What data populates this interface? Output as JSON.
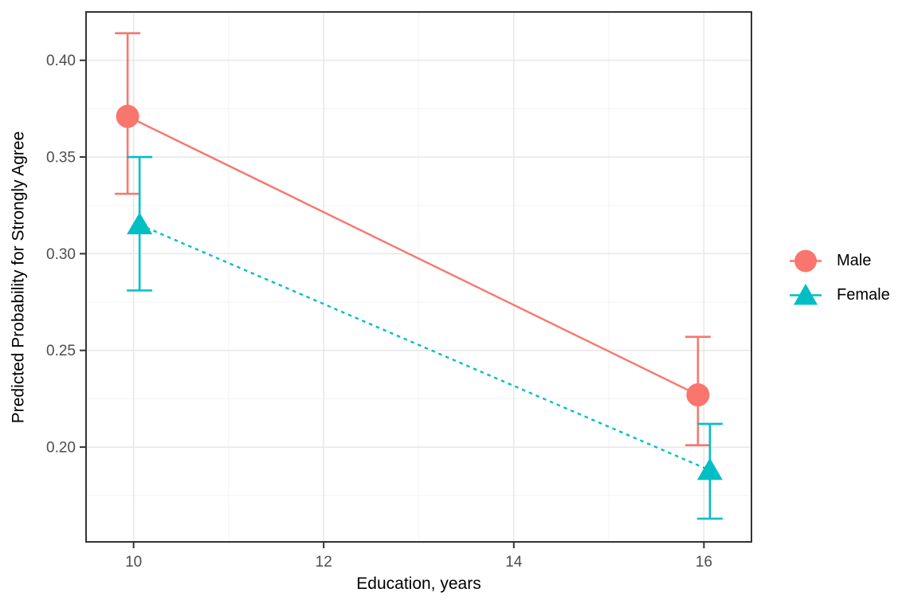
{
  "chart_data": {
    "type": "line",
    "title": "",
    "xlabel": "Education, years",
    "ylabel": "Predicted Probability for Strongly Agree",
    "x_ticks": [
      10,
      12,
      14,
      16
    ],
    "x_tick_labels": [
      "10",
      "12",
      "14",
      "16"
    ],
    "x_minor_ticks": [
      11,
      13,
      15
    ],
    "y_ticks": [
      0.4,
      0.35,
      0.3,
      0.25,
      0.2
    ],
    "y_tick_labels": [
      "0.40",
      "0.35",
      "0.30",
      "0.25",
      "0.20"
    ],
    "y_minor_ticks": [
      0.175,
      0.225,
      0.275,
      0.325,
      0.375
    ],
    "xlim": [
      9.5,
      16.5
    ],
    "ylim": [
      0.151,
      0.425
    ],
    "grid": "major+minor",
    "legend_position": "right",
    "series": [
      {
        "name": "Male",
        "color": "#F8766D",
        "marker": "circle",
        "linestyle": "solid",
        "x": [
          10,
          16
        ],
        "y": [
          0.371,
          0.227
        ],
        "ci_low": [
          0.331,
          0.201
        ],
        "ci_high": [
          0.414,
          0.257
        ]
      },
      {
        "name": "Female",
        "color": "#00BFC4",
        "marker": "triangle",
        "linestyle": "dashed",
        "x": [
          10,
          16
        ],
        "y": [
          0.315,
          0.188
        ],
        "ci_low": [
          0.281,
          0.163
        ],
        "ci_high": [
          0.35,
          0.212
        ]
      }
    ]
  },
  "style": {
    "background": "#FFFFFF",
    "panel_border": "#333333",
    "grid_major": "#E8E8E8",
    "grid_minor": "#F3F3F3",
    "tick_color": "#333333",
    "tick_label_color": "#4D4D4D",
    "axis_title_color": "#000000",
    "legend_text_color": "#000000"
  }
}
